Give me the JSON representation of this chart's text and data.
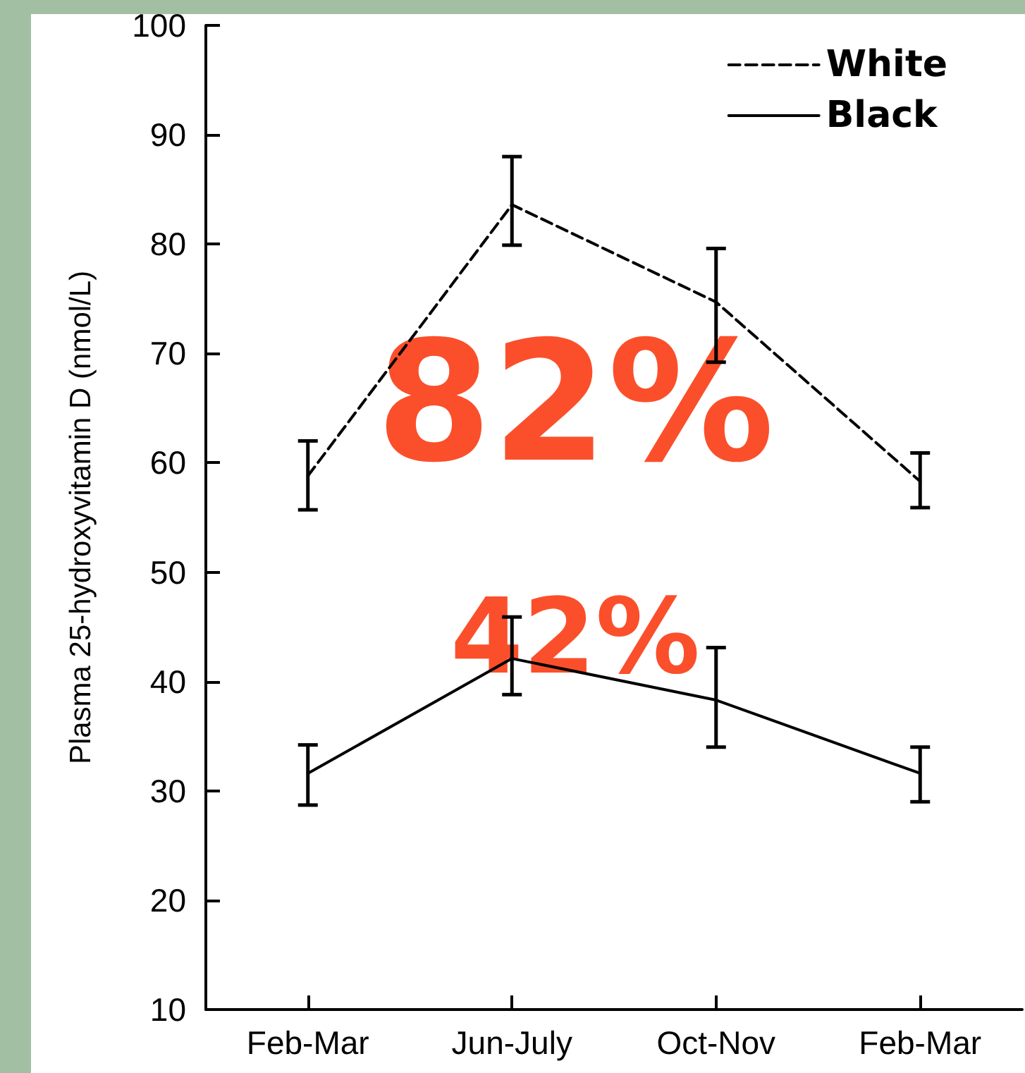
{
  "chart_data": {
    "type": "line",
    "ylabel": "Plasma 25-hydroxyvitamin D (nmol/L)",
    "categories": [
      "Feb-Mar",
      "Jun-July",
      "Oct-Nov",
      "Feb-Mar"
    ],
    "series": [
      {
        "name": "White",
        "color": "#000000",
        "line_style": "dashed",
        "values": [
          58.8,
          83.6,
          74.7,
          58.3
        ],
        "errors": [
          [
            55.7,
            62
          ],
          [
            79.9,
            88
          ],
          [
            69.2,
            79.6
          ],
          [
            55.9,
            60.9
          ]
        ]
      },
      {
        "name": "Black",
        "color": "#000000",
        "line_style": "solid",
        "values": [
          31.6,
          42.1,
          38.3,
          31.6
        ],
        "errors": [
          [
            28.7,
            34.2
          ],
          [
            38.8,
            45.9
          ],
          [
            34.0,
            43.1
          ],
          [
            29.0,
            34.0
          ]
        ]
      }
    ],
    "ylim": [
      10,
      100
    ],
    "yticks": [
      10,
      20,
      30,
      40,
      50,
      60,
      70,
      80,
      90,
      100
    ],
    "marker": "none",
    "grid": false,
    "legend": "top right",
    "annotations": [
      "82%",
      "42%"
    ]
  }
}
